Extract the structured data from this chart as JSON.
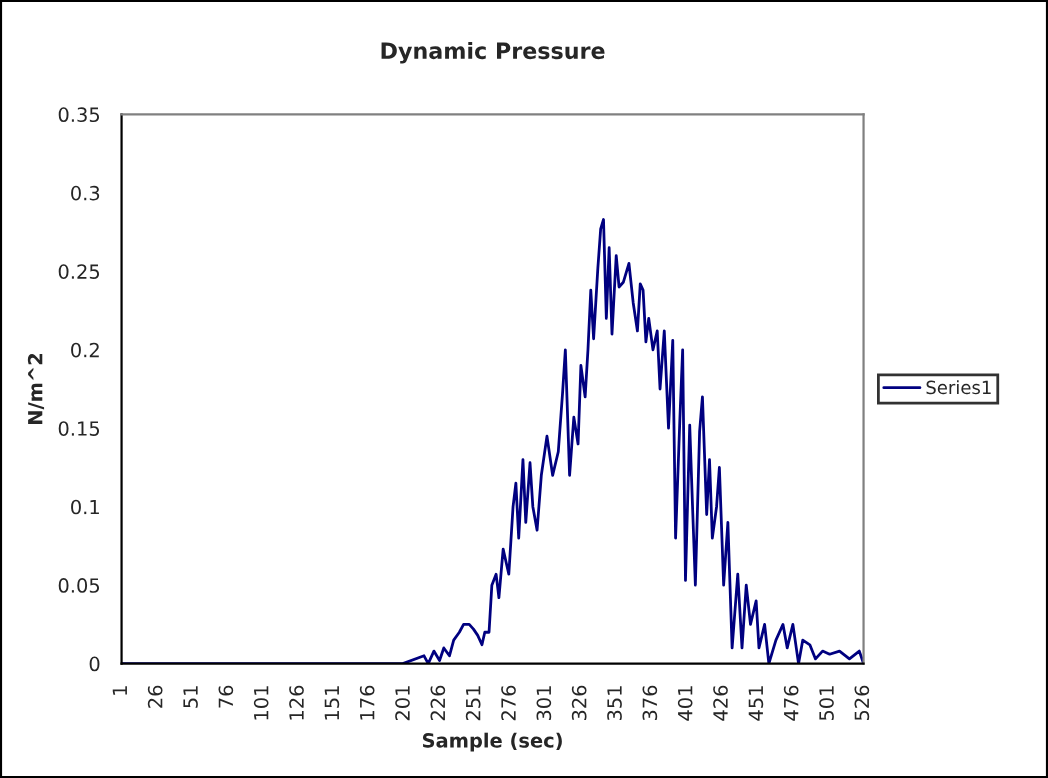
{
  "chart_data": {
    "type": "line",
    "title": "Dynamic Pressure",
    "xlabel": "Sample (sec)",
    "ylabel": "N/m^2",
    "xlim": [
      1,
      526
    ],
    "xticks": [
      1,
      26,
      51,
      76,
      101,
      126,
      151,
      176,
      201,
      226,
      251,
      276,
      301,
      326,
      351,
      376,
      401,
      426,
      451,
      476,
      501,
      526
    ],
    "ylim": [
      0,
      0.35
    ],
    "yticks": [
      0,
      0.05,
      0.1,
      0.15,
      0.2,
      0.25,
      0.3,
      0.35
    ],
    "grid": false,
    "legend": "right",
    "marker": "none",
    "line_style": "solid",
    "series": [
      {
        "name": "Series1",
        "color": "#000080",
        "x": [
          1,
          100,
          200,
          215,
          218,
          222,
          226,
          229,
          233,
          236,
          240,
          243,
          247,
          250,
          253,
          256,
          258,
          261,
          263,
          266,
          268,
          271,
          275,
          278,
          280,
          282,
          285,
          287,
          290,
          292,
          295,
          298,
          302,
          306,
          310,
          313,
          315,
          318,
          321,
          324,
          326,
          329,
          331,
          333,
          335,
          338,
          340,
          342,
          344,
          346,
          348,
          351,
          353,
          356,
          360,
          363,
          366,
          368,
          370,
          372,
          374,
          377,
          380,
          382,
          385,
          388,
          391,
          393,
          396,
          398,
          400,
          403,
          405,
          407,
          410,
          412,
          415,
          417,
          419,
          422,
          424,
          427,
          430,
          433,
          437,
          440,
          443,
          446,
          450,
          452,
          456,
          459,
          464,
          469,
          472,
          476,
          480,
          483,
          488,
          492,
          497,
          502,
          509,
          516,
          523,
          526
        ],
        "values": [
          0,
          0,
          0,
          0.005,
          0,
          0.008,
          0.002,
          0.01,
          0.005,
          0.015,
          0.02,
          0.025,
          0.025,
          0.022,
          0.018,
          0.012,
          0.02,
          0.02,
          0.05,
          0.057,
          0.042,
          0.073,
          0.057,
          0.1,
          0.115,
          0.08,
          0.13,
          0.09,
          0.128,
          0.1,
          0.085,
          0.12,
          0.145,
          0.12,
          0.135,
          0.172,
          0.2,
          0.12,
          0.157,
          0.14,
          0.19,
          0.17,
          0.2,
          0.238,
          0.207,
          0.252,
          0.277,
          0.283,
          0.22,
          0.265,
          0.21,
          0.26,
          0.24,
          0.243,
          0.255,
          0.23,
          0.212,
          0.242,
          0.238,
          0.205,
          0.22,
          0.2,
          0.212,
          0.175,
          0.212,
          0.15,
          0.206,
          0.08,
          0.155,
          0.2,
          0.053,
          0.152,
          0.1,
          0.05,
          0.148,
          0.17,
          0.095,
          0.13,
          0.08,
          0.1,
          0.125,
          0.05,
          0.09,
          0.01,
          0.057,
          0.01,
          0.05,
          0.025,
          0.04,
          0.01,
          0.025,
          0,
          0.015,
          0.025,
          0.01,
          0.025,
          0,
          0.015,
          0.012,
          0.003,
          0.008,
          0.006,
          0.008,
          0.003,
          0.008,
          0
        ]
      }
    ]
  }
}
